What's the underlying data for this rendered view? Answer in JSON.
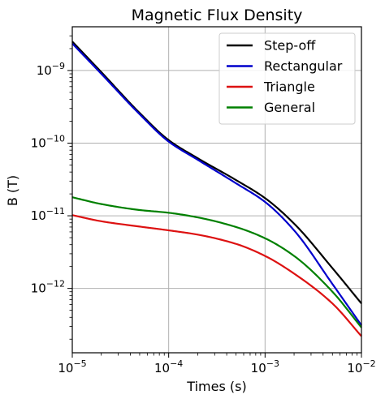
{
  "chart_data": {
    "type": "line",
    "title": "Magnetic Flux Density",
    "xlabel": "Times (s)",
    "ylabel": "B (T)",
    "xscale": "log",
    "yscale": "log",
    "xlim": [
      1e-05,
      0.01
    ],
    "ylim": [
      1.3e-13,
      4e-09
    ],
    "grid": true,
    "legend_position": "top-right",
    "x_ticks": [
      {
        "value": 1e-05,
        "base": "10",
        "exp": "−5"
      },
      {
        "value": 0.0001,
        "base": "10",
        "exp": "−4"
      },
      {
        "value": 0.001,
        "base": "10",
        "exp": "−3"
      },
      {
        "value": 0.01,
        "base": "10",
        "exp": "−2"
      }
    ],
    "y_ticks": [
      {
        "value": 1e-12,
        "base": "10",
        "exp": "−12"
      },
      {
        "value": 1e-11,
        "base": "10",
        "exp": "−11"
      },
      {
        "value": 1e-10,
        "base": "10",
        "exp": "−10"
      },
      {
        "value": 1e-09,
        "base": "10",
        "exp": "−9"
      }
    ],
    "x": [
      1e-05,
      2e-05,
      5e-05,
      0.0001,
      0.0002,
      0.0005,
      0.001,
      0.002,
      0.005,
      0.01
    ],
    "series": [
      {
        "name": "Step-off",
        "color": "#000000",
        "values": [
          2.5e-09,
          9.5e-10,
          2.6e-10,
          1.1e-10,
          6.2e-11,
          3.1e-11,
          1.75e-11,
          7.8e-12,
          1.9e-12,
          6.2e-13
        ]
      },
      {
        "name": "Rectangular",
        "color": "#0000cc",
        "values": [
          2.35e-09,
          9e-10,
          2.5e-10,
          1.05e-10,
          5.9e-11,
          2.8e-11,
          1.55e-11,
          6.3e-12,
          1.15e-12,
          3.1e-13
        ]
      },
      {
        "name": "Triangle",
        "color": "#dd1111",
        "values": [
          1.02e-11,
          8.4e-12,
          7.1e-12,
          6.3e-12,
          5.5e-12,
          4.1e-12,
          2.8e-12,
          1.6e-12,
          6.2e-13,
          2.2e-13
        ]
      },
      {
        "name": "General",
        "color": "#008000",
        "values": [
          1.8e-11,
          1.45e-11,
          1.2e-11,
          1.1e-11,
          9.5e-12,
          7e-12,
          4.9e-12,
          2.8e-12,
          9e-13,
          2.9e-13
        ]
      }
    ]
  }
}
